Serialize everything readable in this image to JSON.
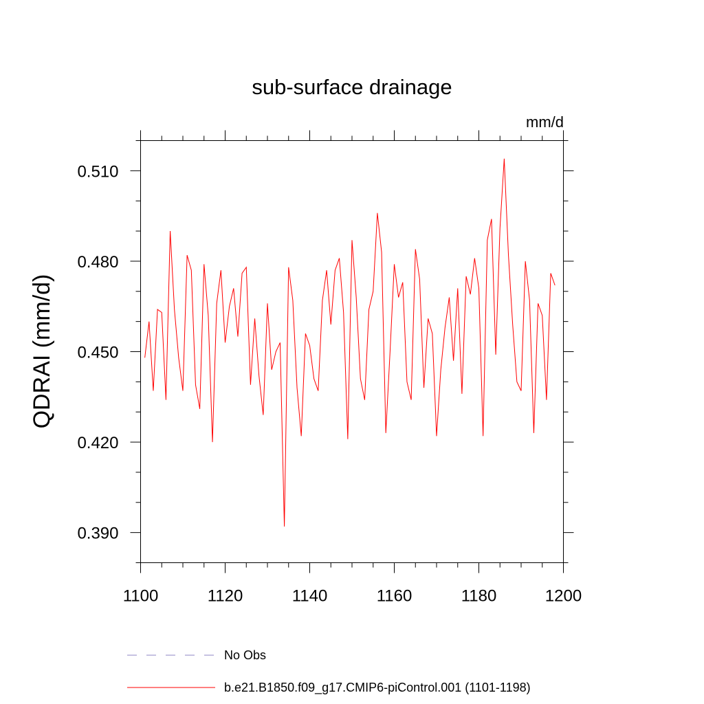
{
  "chart_data": {
    "type": "line",
    "title": "sub-surface drainage",
    "units": "mm/d",
    "ylabel": "QDRAI  (mm/d)",
    "xlabel": "",
    "xlim": [
      1100,
      1200
    ],
    "ylim": [
      0.38,
      0.52
    ],
    "xticks": [
      1100,
      1120,
      1140,
      1160,
      1180,
      1200
    ],
    "xtick_labels": [
      "1100",
      "1120",
      "1140",
      "1160",
      "1180",
      "1200"
    ],
    "yticks": [
      0.39,
      0.42,
      0.45,
      0.48,
      0.51
    ],
    "ytick_labels": [
      "0.390",
      "0.420",
      "0.450",
      "0.480",
      "0.510"
    ],
    "grid": false,
    "legend_position": "bottom",
    "legend": [
      {
        "label": "No Obs",
        "color": "#8c84c4",
        "style": "dashed"
      },
      {
        "label": "b.e21.B1850.f09_g17.CMIP6-piControl.001 (1101-1198)",
        "color": "#ff0000",
        "style": "solid"
      }
    ],
    "series": [
      {
        "name": "b.e21.B1850.f09_g17.CMIP6-piControl.001 (1101-1198)",
        "color": "#ff0000",
        "x": [
          1101,
          1102,
          1103,
          1104,
          1105,
          1106,
          1107,
          1108,
          1109,
          1110,
          1111,
          1112,
          1113,
          1114,
          1115,
          1116,
          1117,
          1118,
          1119,
          1120,
          1121,
          1122,
          1123,
          1124,
          1125,
          1126,
          1127,
          1128,
          1129,
          1130,
          1131,
          1132,
          1133,
          1134,
          1135,
          1136,
          1137,
          1138,
          1139,
          1140,
          1141,
          1142,
          1143,
          1144,
          1145,
          1146,
          1147,
          1148,
          1149,
          1150,
          1151,
          1152,
          1153,
          1154,
          1155,
          1156,
          1157,
          1158,
          1159,
          1160,
          1161,
          1162,
          1163,
          1164,
          1165,
          1166,
          1167,
          1168,
          1169,
          1170,
          1171,
          1172,
          1173,
          1174,
          1175,
          1176,
          1177,
          1178,
          1179,
          1180,
          1181,
          1182,
          1183,
          1184,
          1185,
          1186,
          1187,
          1188,
          1189,
          1190,
          1191,
          1192,
          1193,
          1194,
          1195,
          1196,
          1197,
          1198
        ],
        "y": [
          0.448,
          0.46,
          0.437,
          0.464,
          0.463,
          0.434,
          0.49,
          0.464,
          0.448,
          0.437,
          0.482,
          0.477,
          0.439,
          0.431,
          0.479,
          0.462,
          0.42,
          0.466,
          0.477,
          0.453,
          0.465,
          0.471,
          0.455,
          0.476,
          0.478,
          0.439,
          0.461,
          0.442,
          0.429,
          0.466,
          0.444,
          0.45,
          0.453,
          0.392,
          0.478,
          0.467,
          0.438,
          0.422,
          0.456,
          0.452,
          0.441,
          0.437,
          0.467,
          0.477,
          0.459,
          0.477,
          0.481,
          0.463,
          0.421,
          0.487,
          0.468,
          0.441,
          0.434,
          0.464,
          0.47,
          0.496,
          0.483,
          0.423,
          0.45,
          0.479,
          0.468,
          0.473,
          0.44,
          0.434,
          0.484,
          0.474,
          0.438,
          0.461,
          0.456,
          0.422,
          0.444,
          0.458,
          0.468,
          0.447,
          0.471,
          0.436,
          0.475,
          0.469,
          0.481,
          0.471,
          0.422,
          0.487,
          0.494,
          0.449,
          0.491,
          0.514,
          0.482,
          0.459,
          0.44,
          0.437,
          0.48,
          0.467,
          0.423,
          0.466,
          0.462,
          0.434,
          0.476,
          0.472
        ]
      }
    ]
  }
}
